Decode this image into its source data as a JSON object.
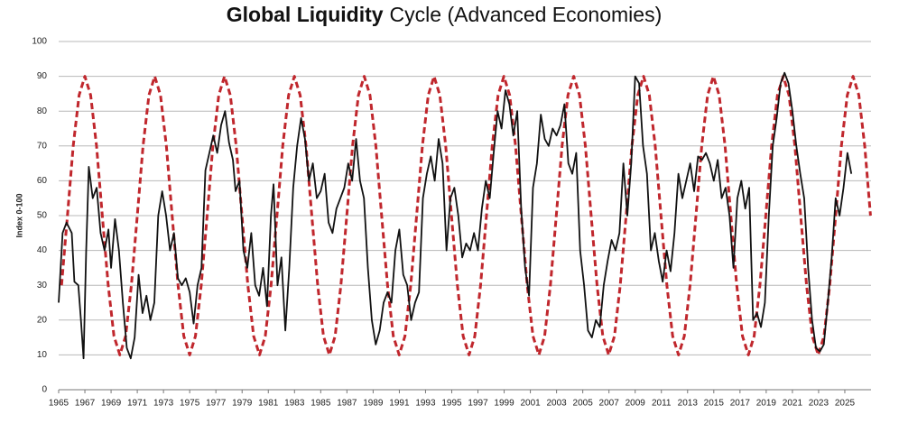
{
  "chart_data": {
    "type": "line",
    "title_parts": [
      "Global Liquidity",
      "Cycle (Advanced Economies)"
    ],
    "y_label": "Index 0-100",
    "xlim": [
      1965,
      2027
    ],
    "ylim": [
      0,
      100
    ],
    "xticks": [
      1965,
      1967,
      1969,
      1971,
      1973,
      1975,
      1977,
      1979,
      1981,
      1983,
      1985,
      1987,
      1989,
      1991,
      1993,
      1995,
      1997,
      1999,
      2001,
      2003,
      2005,
      2007,
      2009,
      2011,
      2013,
      2015,
      2017,
      2019,
      2021,
      2023,
      2025
    ],
    "yticks": [
      0,
      10,
      20,
      30,
      40,
      50,
      60,
      70,
      80,
      90,
      100
    ],
    "grid": true,
    "series": [
      {
        "color": "#c0272d",
        "dashed": true,
        "x": [
          1965.22,
          1965.67,
          1966.11,
          1966.56,
          1967,
          1967.44,
          1967.89,
          1968.33,
          1968.78,
          1969.22,
          1969.67,
          1970.11,
          1970.55,
          1971,
          1971.44,
          1971.89,
          1972.33,
          1972.77,
          1973.22,
          1973.66,
          1974.11,
          1974.55,
          1975,
          1975.44,
          1975.88,
          1976.33,
          1976.77,
          1977.22,
          1977.66,
          1978.1,
          1978.55,
          1978.99,
          1979.44,
          1979.88,
          1980.33,
          1980.77,
          1981.21,
          1981.66,
          1982.1,
          1982.55,
          1982.99,
          1983.43,
          1983.88,
          1984.32,
          1984.77,
          1985.21,
          1985.66,
          1986.1,
          1986.54,
          1986.99,
          1987.43,
          1987.88,
          1988.32,
          1988.76,
          1989.21,
          1989.65,
          1990.1,
          1990.54,
          1990.99,
          1991.43,
          1991.87,
          1992.32,
          1992.76,
          1993.21,
          1993.65,
          1994.09,
          1994.54,
          1994.98,
          1995.43,
          1995.87,
          1996.32,
          1996.76,
          1997.2,
          1997.65,
          1998.09,
          1998.54,
          1998.98,
          1999.42,
          1999.87,
          2000.31,
          2000.76,
          2001.2,
          2001.65,
          2002.09,
          2002.53,
          2002.98,
          2003.42,
          2003.87,
          2004.31,
          2004.75,
          2005.2,
          2005.64,
          2006.09,
          2006.53,
          2006.98,
          2007.42,
          2007.86,
          2008.31,
          2008.75,
          2009.2,
          2009.64,
          2010.08,
          2010.53,
          2010.97,
          2011.42,
          2011.86,
          2012.31,
          2012.75,
          2013.19,
          2013.64,
          2014.08,
          2014.53,
          2014.97,
          2015.41,
          2015.86,
          2016.3,
          2016.75,
          2017.19,
          2017.64,
          2018.08,
          2018.52,
          2018.97,
          2019.41,
          2019.86,
          2020.3,
          2020.74,
          2021.19,
          2021.63,
          2022.08,
          2022.52,
          2022.97,
          2023.41,
          2023.85,
          2024.3,
          2024.74,
          2025.19,
          2025.63,
          2026.07,
          2026.52,
          2026.96
        ],
        "values": [
          30,
          50,
          70,
          84.6,
          90,
          84.6,
          70,
          50,
          30,
          15.4,
          10,
          15.4,
          30,
          50,
          70,
          84.6,
          90,
          84.6,
          70,
          50,
          30,
          15.4,
          10,
          15.4,
          30,
          50,
          70,
          84.6,
          90,
          84.6,
          70,
          50,
          30,
          15.4,
          10,
          15.4,
          30,
          50,
          70,
          84.6,
          90,
          84.6,
          70,
          50,
          30,
          15.4,
          10,
          15.4,
          30,
          50,
          70,
          84.6,
          90,
          84.6,
          70,
          50,
          30,
          15.4,
          10,
          15.4,
          30,
          50,
          70,
          84.6,
          90,
          84.6,
          70,
          50,
          30,
          15.4,
          10,
          15.4,
          30,
          50,
          70,
          84.6,
          90,
          84.6,
          70,
          50,
          30,
          15.4,
          10,
          15.4,
          30,
          50,
          70,
          84.6,
          90,
          84.6,
          70,
          50,
          30,
          15.4,
          10,
          15.4,
          30,
          50,
          70,
          84.6,
          90,
          84.6,
          70,
          50,
          30,
          15.4,
          10,
          15.4,
          30,
          50,
          70,
          84.6,
          90,
          84.6,
          70,
          50,
          30,
          15.4,
          10,
          15.4,
          30,
          50,
          70,
          84.6,
          90,
          84.6,
          70,
          50,
          30,
          15.4,
          10,
          15.4,
          30,
          50,
          70,
          84.6,
          90,
          84.6,
          70,
          50
        ]
      },
      {
        "color": "#111111",
        "dashed": false,
        "x": [
          1965.0,
          1965.3,
          1965.6,
          1966.0,
          1966.2,
          1966.5,
          1966.7,
          1966.9,
          1967.1,
          1967.3,
          1967.6,
          1967.9,
          1968.2,
          1968.5,
          1968.8,
          1969.0,
          1969.3,
          1969.6,
          1969.9,
          1970.2,
          1970.5,
          1970.8,
          1971.1,
          1971.4,
          1971.7,
          1972.0,
          1972.3,
          1972.6,
          1972.9,
          1973.2,
          1973.5,
          1973.8,
          1974.1,
          1974.4,
          1974.7,
          1975.0,
          1975.3,
          1975.6,
          1975.9,
          1976.2,
          1976.5,
          1976.8,
          1977.1,
          1977.4,
          1977.7,
          1978.0,
          1978.3,
          1978.5,
          1978.8,
          1979.1,
          1979.4,
          1979.7,
          1980.0,
          1980.3,
          1980.6,
          1980.9,
          1981.2,
          1981.4,
          1981.7,
          1982.0,
          1982.3,
          1982.6,
          1982.9,
          1983.2,
          1983.5,
          1983.8,
          1984.1,
          1984.4,
          1984.7,
          1985.0,
          1985.3,
          1985.6,
          1985.9,
          1986.2,
          1986.5,
          1986.8,
          1987.1,
          1987.4,
          1987.7,
          1988.0,
          1988.3,
          1988.6,
          1988.9,
          1989.2,
          1989.5,
          1989.8,
          1990.1,
          1990.4,
          1990.7,
          1991.0,
          1991.3,
          1991.6,
          1991.9,
          1992.2,
          1992.5,
          1992.8,
          1993.1,
          1993.4,
          1993.7,
          1994.0,
          1994.3,
          1994.6,
          1994.9,
          1995.2,
          1995.5,
          1995.8,
          1996.1,
          1996.4,
          1996.7,
          1997.0,
          1997.3,
          1997.6,
          1997.9,
          1998.2,
          1998.5,
          1998.8,
          1999.1,
          1999.4,
          1999.7,
          2000.0,
          2000.3,
          2000.6,
          2000.9,
          2001.2,
          2001.5,
          2001.8,
          2002.1,
          2002.4,
          2002.7,
          2003.0,
          2003.3,
          2003.6,
          2003.9,
          2004.2,
          2004.5,
          2004.8,
          2005.1,
          2005.4,
          2005.7,
          2006.0,
          2006.3,
          2006.6,
          2006.9,
          2007.2,
          2007.5,
          2007.8,
          2008.1,
          2008.4,
          2008.7,
          2009.0,
          2009.3,
          2009.6,
          2009.9,
          2010.2,
          2010.5,
          2010.8,
          2011.1,
          2011.4,
          2011.7,
          2012.0,
          2012.3,
          2012.6,
          2012.9,
          2013.2,
          2013.5,
          2013.8,
          2014.1,
          2014.4,
          2014.7,
          2015.0,
          2015.3,
          2015.6,
          2015.9,
          2016.2,
          2016.5,
          2016.8,
          2017.1,
          2017.4,
          2017.7,
          2018.0,
          2018.3,
          2018.6,
          2018.9,
          2019.2,
          2019.5,
          2019.8,
          2020.1,
          2020.4,
          2020.7,
          2021.0,
          2021.3,
          2021.6,
          2021.9,
          2022.2,
          2022.5,
          2022.8,
          2023.1,
          2023.4,
          2023.7,
          2024.0,
          2024.3,
          2024.6,
          2024.9,
          2025.2,
          2025.5
        ],
        "values": [
          25,
          45,
          48,
          45,
          31,
          30,
          20,
          9,
          40,
          64,
          55,
          58,
          45,
          40,
          46,
          35,
          49,
          40,
          25,
          12,
          9,
          15,
          33,
          22,
          27,
          20,
          25,
          50,
          57,
          50,
          40,
          45,
          32,
          30,
          32,
          28,
          19,
          30,
          35,
          63,
          68,
          73,
          68,
          76,
          80,
          71,
          66,
          57,
          60,
          40,
          35,
          45,
          30,
          27,
          35,
          24,
          50,
          59,
          30,
          38,
          17,
          35,
          58,
          70,
          78,
          72,
          60,
          65,
          55,
          57,
          62,
          48,
          45,
          52,
          55,
          58,
          65,
          60,
          72,
          60,
          55,
          35,
          20,
          13,
          17,
          25,
          28,
          25,
          40,
          46,
          33,
          30,
          20,
          25,
          28,
          55,
          62,
          67,
          60,
          72,
          65,
          40,
          55,
          58,
          50,
          38,
          42,
          40,
          45,
          40,
          52,
          60,
          55,
          68,
          80,
          75,
          86,
          82,
          73,
          80,
          52,
          35,
          27,
          58,
          65,
          79,
          72,
          70,
          75,
          73,
          76,
          82,
          65,
          62,
          68,
          40,
          30,
          17,
          15,
          20,
          18,
          30,
          37,
          43,
          40,
          45,
          65,
          50,
          65,
          90,
          88,
          70,
          62,
          40,
          45,
          37,
          31,
          40,
          34,
          45,
          62,
          55,
          60,
          65,
          57,
          67,
          66,
          68,
          65,
          60,
          66,
          55,
          58,
          50,
          35,
          55,
          60,
          52,
          58,
          20,
          22,
          18,
          25,
          50,
          70,
          78,
          88,
          91,
          88,
          80,
          70,
          62,
          55,
          35,
          20,
          12,
          11,
          13,
          25,
          38,
          55,
          50,
          58,
          68,
          62
        ]
      }
    ]
  }
}
